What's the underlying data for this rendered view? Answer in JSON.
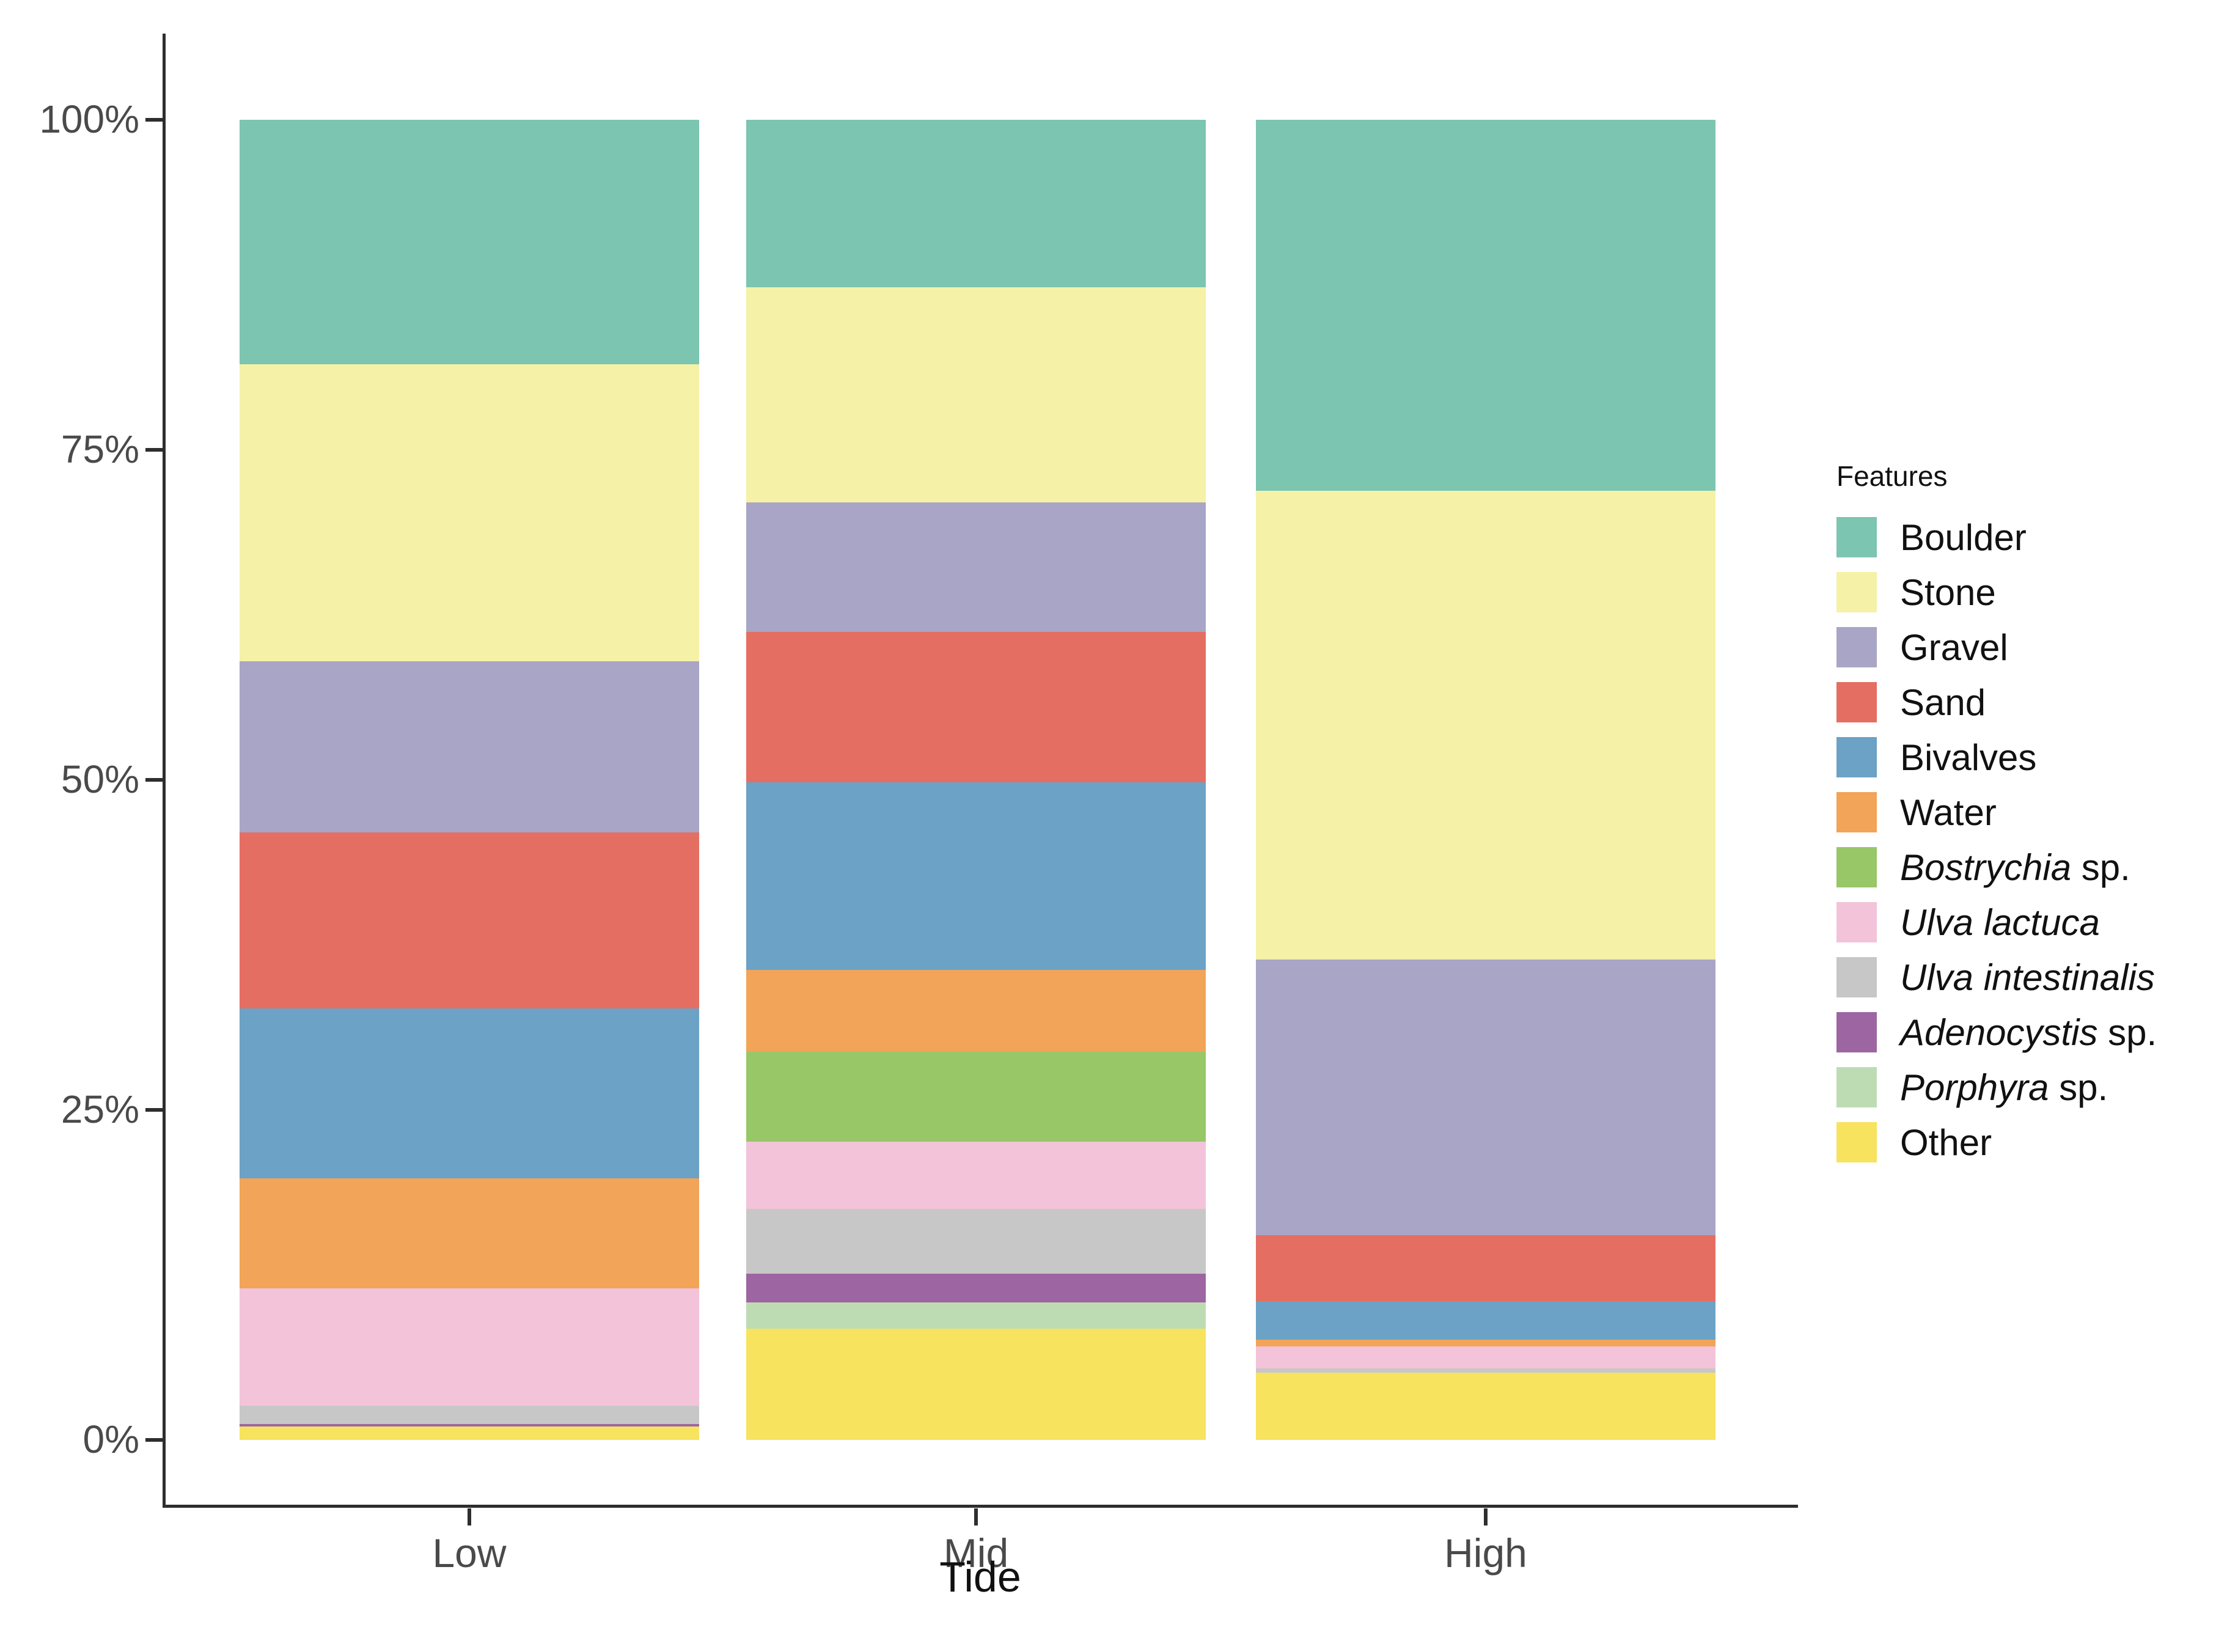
{
  "chart_data": {
    "type": "bar",
    "stacked": true,
    "percent": true,
    "title": "",
    "xlabel": "Tide",
    "ylabel": "",
    "ylim": [
      0,
      100
    ],
    "grid": false,
    "legend_position": "right",
    "legend_title": "Features",
    "categories": [
      "Low",
      "Mid",
      "High"
    ],
    "y_ticks": [
      {
        "label": "100%",
        "value": 100
      },
      {
        "label": "75%",
        "value": 75
      },
      {
        "label": "50%",
        "value": 50
      },
      {
        "label": "25%",
        "value": 25
      },
      {
        "label": "0%",
        "value": 0
      }
    ],
    "series": [
      {
        "name": "Boulder",
        "italic": "",
        "plain": "Boulder",
        "color": "#7cc5b0",
        "values": [
          18.5,
          12.7,
          28.1
        ]
      },
      {
        "name": "Stone",
        "italic": "",
        "plain": "Stone",
        "color": "#f5f1a6",
        "values": [
          22.5,
          16.3,
          35.5
        ]
      },
      {
        "name": "Gravel",
        "italic": "",
        "plain": "Gravel",
        "color": "#a9a5c6",
        "values": [
          13.0,
          9.8,
          20.9
        ]
      },
      {
        "name": "Sand",
        "italic": "",
        "plain": "Sand",
        "color": "#e46e62",
        "values": [
          13.3,
          11.4,
          5.0
        ]
      },
      {
        "name": "Bivalves",
        "italic": "",
        "plain": "Bivalves",
        "color": "#6ba2c6",
        "values": [
          12.9,
          14.2,
          2.9
        ]
      },
      {
        "name": "Water",
        "italic": "",
        "plain": "Water",
        "color": "#f2a458",
        "values": [
          8.3,
          6.2,
          0.5
        ]
      },
      {
        "name": "Bostrychia sp.",
        "italic": "Bostrychia",
        "plain": " sp.",
        "color": "#97c766",
        "values": [
          0,
          6.8,
          0
        ]
      },
      {
        "name": "Ulva lactuca",
        "italic": "Ulva lactuca",
        "plain": "",
        "color": "#f3c3d9",
        "values": [
          8.9,
          5.1,
          1.7
        ]
      },
      {
        "name": "Ulva intestinalis",
        "italic": "Ulva intestinalis",
        "plain": "",
        "color": "#c8c7c7",
        "values": [
          1.4,
          4.9,
          0.3
        ]
      },
      {
        "name": "Adenocystis sp.",
        "italic": "Adenocystis",
        "plain": " sp.",
        "color": "#9d66a3",
        "values": [
          0.2,
          2.2,
          0
        ]
      },
      {
        "name": "Porphyra sp.",
        "italic": "Porphyra",
        "plain": " sp.",
        "color": "#bedcb3",
        "values": [
          0,
          2.0,
          0
        ]
      },
      {
        "name": "Other",
        "italic": "",
        "plain": "Other",
        "color": "#f7e35e",
        "values": [
          1.0,
          8.4,
          5.1
        ]
      }
    ]
  },
  "colors": {
    "axis_line": "#2e2e2e",
    "axis_text": "#4a4a4a",
    "title_text": "#111111",
    "background": "#ffffff"
  }
}
